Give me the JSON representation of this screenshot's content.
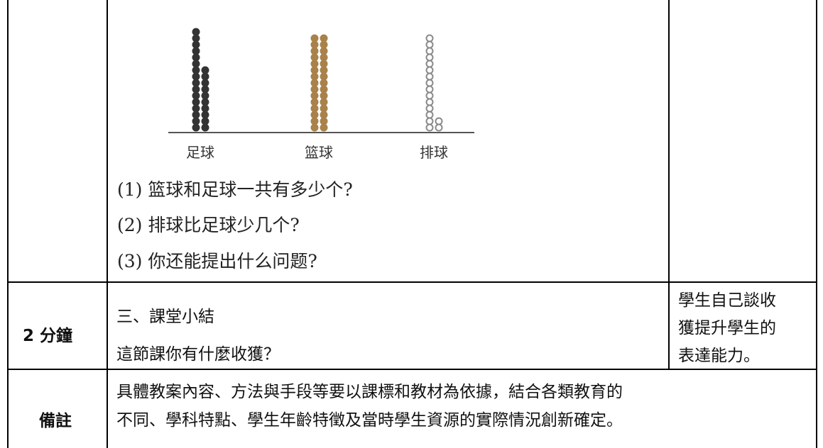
{
  "figure": {
    "columns": [
      {
        "label": "足球",
        "color": "#333333",
        "counts": [
          16,
          10
        ]
      },
      {
        "label": "篮球",
        "color": "#a8824a",
        "counts": [
          15,
          15
        ]
      },
      {
        "label": "排球",
        "color": "#8a8a8a",
        "counts": [
          15,
          2
        ]
      }
    ],
    "questions": [
      "(1) 篮球和足球一共有多少个?",
      "(2) 排球比足球少几个?",
      "(3) 你还能提出什么问题?"
    ]
  },
  "table": {
    "rows": [
      {
        "time": "2 分鐘",
        "content": [
          "三、課堂小結",
          "這節課你有什麼收獲？"
        ],
        "note": [
          "學生自己談收",
          "獲提升學生的",
          "表達能力。"
        ]
      },
      {
        "time": "備註",
        "content": [
          "具體教案內容、方法與手段等要以課標和教材為依據，結合各類教育的",
          "不同、學科特點、學生年齡特徵及當時學生資源的實際情況創新確定。"
        ]
      }
    ]
  }
}
